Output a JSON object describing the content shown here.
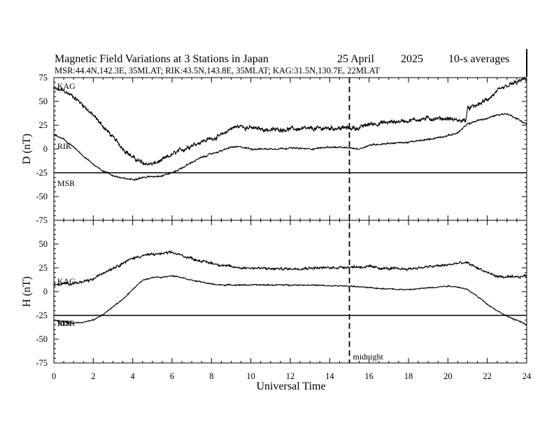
{
  "chart_data": {
    "type": "line",
    "title": "Magnetic Field Variations at 3 Stations in Japan",
    "date_text": "25  April",
    "year_text": "2025",
    "averaging_text": "10-s averages",
    "subtitle": "MSR:44.4N,142.3E, 35MLAT;  RIK:43.5N,143.8E, 35MLAT;  KAG:31.5N,130.7E, 22MLAT",
    "xlabel": "Universal Time",
    "xlim": [
      0,
      24
    ],
    "x_ticks": [
      0,
      2,
      4,
      6,
      8,
      10,
      12,
      14,
      16,
      18,
      20,
      22,
      24
    ],
    "x_tick_labels": [
      "0",
      "2",
      "4",
      "6",
      "8",
      "10",
      "12",
      "14",
      "16",
      "18",
      "20",
      "22",
      "24"
    ],
    "midnight": {
      "x": 15,
      "label": "midnight"
    },
    "panels": [
      {
        "ylabel": "D (nT)",
        "ylim": [
          -75,
          75
        ],
        "y_ticks": [
          75,
          50,
          25,
          0,
          -25,
          -50,
          -75
        ],
        "y_tick_labels": [
          "75",
          "50",
          "25",
          "0",
          "-25",
          "-50",
          "-75"
        ],
        "series": [
          {
            "name": "KAG",
            "noise": 2.2,
            "x": [
              0,
              0.5,
              1,
              1.5,
              2,
              2.5,
              3,
              3.5,
              4,
              4.5,
              5,
              5.5,
              6,
              6.5,
              7,
              7.5,
              8,
              8.5,
              9,
              9.5,
              10,
              11,
              12,
              13,
              14,
              15,
              15.5,
              16,
              17,
              18,
              19,
              20,
              20.5,
              20.9,
              21,
              21.5,
              22,
              22.5,
              23,
              23.5,
              24
            ],
            "y": [
              63,
              61,
              55,
              46,
              35,
              24,
              12,
              1,
              -9,
              -15,
              -16,
              -12,
              -6,
              -1,
              4,
              8,
              11,
              14,
              22,
              24,
              22,
              20,
              21,
              21,
              22,
              22,
              22,
              26,
              28,
              30,
              32,
              32,
              30,
              30,
              42,
              46,
              52,
              60,
              66,
              70,
              74
            ]
          },
          {
            "name": "RIK",
            "noise": 0.8,
            "x": [
              0,
              0.5,
              1,
              1.5,
              2,
              2.5,
              3,
              3.5,
              4,
              4.5,
              5,
              5.5,
              6,
              6.5,
              7,
              7.5,
              8,
              8.5,
              9,
              9.5,
              10,
              11,
              12,
              13,
              14,
              15,
              15.5,
              16,
              17,
              18,
              19,
              20,
              20.5,
              21,
              21.5,
              22,
              22.5,
              23,
              23.5,
              24
            ],
            "y": [
              15,
              10,
              2,
              -8,
              -16,
              -23,
              -28,
              -31,
              -32,
              -30,
              -29,
              -28,
              -25,
              -20,
              -14,
              -9,
              -5,
              -2,
              2,
              2,
              0,
              0,
              1,
              0,
              2,
              1,
              0,
              4,
              6,
              7,
              10,
              14,
              17,
              26,
              30,
              32,
              36,
              37,
              32,
              26
            ]
          },
          {
            "name": "MSR",
            "noise": 0,
            "x": [
              0,
              24
            ],
            "y": [
              -25,
              -25
            ]
          }
        ],
        "labels": [
          {
            "text": "KAG",
            "x": 0.1,
            "y": 66
          },
          {
            "text": "RIK",
            "x": 0.1,
            "y": 3
          },
          {
            "text": "MSR",
            "x": 0.1,
            "y": -36
          }
        ]
      },
      {
        "ylabel": "H (nT)",
        "ylim": [
          -75,
          75
        ],
        "y_ticks": [
          75,
          50,
          25,
          0,
          -25,
          -50,
          -75
        ],
        "y_tick_labels": [
          "",
          "50",
          "25",
          "0",
          "-25",
          "-50",
          "-75"
        ],
        "series": [
          {
            "name": "KAG",
            "noise": 1.3,
            "x": [
              0,
              0.5,
              1,
              1.5,
              2,
              2.5,
              3,
              3.5,
              4,
              4.5,
              5,
              5.5,
              6,
              6.5,
              7,
              7.5,
              8,
              8.5,
              9,
              9.5,
              10,
              11,
              12,
              13,
              14,
              15,
              16,
              17,
              18,
              19,
              20,
              20.5,
              21,
              21.5,
              22,
              22.5,
              23,
              23.5,
              24
            ],
            "y": [
              7,
              8,
              9,
              10,
              13,
              20,
              25,
              30,
              35,
              38,
              39,
              40,
              41,
              38,
              35,
              32,
              30,
              28,
              26,
              25,
              25,
              24,
              24,
              25,
              25,
              26,
              26,
              24,
              24,
              26,
              28,
              30,
              30,
              25,
              20,
              16,
              15,
              15,
              17
            ]
          },
          {
            "name": "RIK",
            "noise": 0.6,
            "x": [
              0,
              0.5,
              1,
              1.5,
              2,
              2.5,
              3,
              3.5,
              4,
              4.5,
              5,
              5.5,
              6,
              6.5,
              7,
              7.5,
              8,
              8.5,
              9,
              9.5,
              10,
              11,
              12,
              13,
              14,
              15,
              16,
              17,
              18,
              19,
              20,
              20.5,
              21,
              21.5,
              22,
              22.5,
              23,
              23.5,
              24
            ],
            "y": [
              -30,
              -31,
              -33,
              -32,
              -30,
              -24,
              -16,
              -8,
              2,
              12,
              15,
              15,
              17,
              15,
              12,
              10,
              8,
              7,
              7,
              7,
              7,
              7,
              7,
              7,
              6,
              6,
              4,
              3,
              2,
              4,
              6,
              5,
              2,
              -5,
              -13,
              -20,
              -26,
              -30,
              -35
            ]
          },
          {
            "name": "MSR",
            "noise": 0,
            "x": [
              0,
              24
            ],
            "y": [
              -25,
              -25
            ]
          }
        ],
        "labels": [
          {
            "text": "KAG",
            "x": 0.1,
            "y": 11
          },
          {
            "text": "RIK",
            "x": 0.1,
            "y": -33
          },
          {
            "text": "MSR",
            "x": 0.1,
            "y": -33
          }
        ]
      }
    ]
  }
}
